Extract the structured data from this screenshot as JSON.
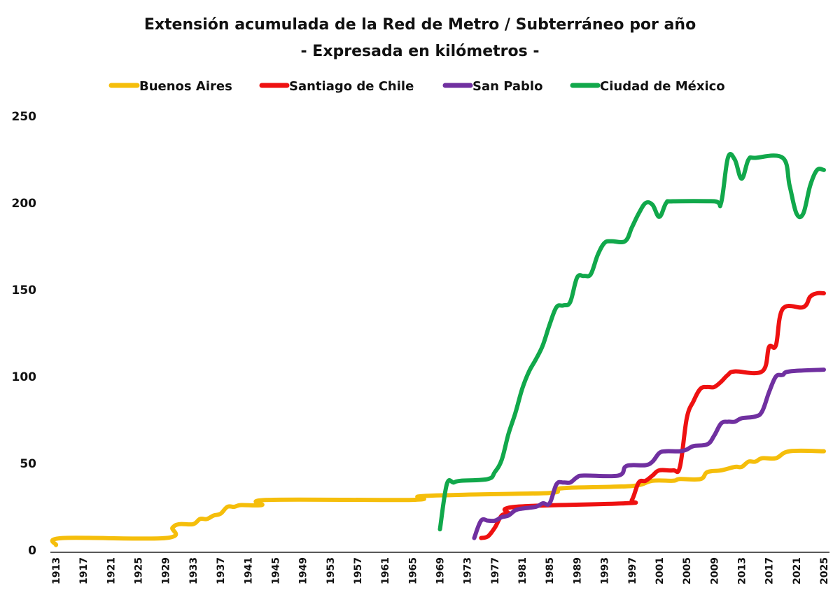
{
  "chart_data": {
    "type": "line",
    "title": "Extensión acumulada de la Red de Metro / Subterráneo por año",
    "subtitle": "- Expresada en kilómetros -",
    "xlabel": "",
    "ylabel": "",
    "xlim": [
      1913,
      2025
    ],
    "ylim": [
      0,
      250
    ],
    "grid": false,
    "legend_position": "top",
    "yticks": [
      0,
      50,
      100,
      150,
      200,
      250
    ],
    "xticks": [
      1913,
      1917,
      1921,
      1925,
      1929,
      1933,
      1937,
      1941,
      1945,
      1949,
      1953,
      1957,
      1961,
      1965,
      1969,
      1973,
      1977,
      1981,
      1985,
      1989,
      1993,
      1997,
      2001,
      2005,
      2009,
      2013,
      2017,
      2021,
      2025
    ],
    "series": [
      {
        "name": "Buenos Aires",
        "color": "#F5BE0B",
        "points": [
          [
            1913,
            3
          ],
          [
            1914,
            7
          ],
          [
            1929,
            7
          ],
          [
            1930,
            13
          ],
          [
            1931,
            15
          ],
          [
            1933,
            15
          ],
          [
            1934,
            18
          ],
          [
            1935,
            18
          ],
          [
            1936,
            20
          ],
          [
            1937,
            21
          ],
          [
            1938,
            25
          ],
          [
            1939,
            25
          ],
          [
            1940,
            26
          ],
          [
            1943,
            26
          ],
          [
            1944,
            29
          ],
          [
            1965,
            29
          ],
          [
            1966,
            31
          ],
          [
            1973,
            32
          ],
          [
            1985,
            33
          ],
          [
            1986,
            35
          ],
          [
            1988,
            36
          ],
          [
            1997,
            37
          ],
          [
            2000,
            40
          ],
          [
            2003,
            40
          ],
          [
            2004,
            41
          ],
          [
            2007,
            41
          ],
          [
            2008,
            45
          ],
          [
            2010,
            46
          ],
          [
            2012,
            48
          ],
          [
            2013,
            48
          ],
          [
            2014,
            51
          ],
          [
            2015,
            51
          ],
          [
            2016,
            53
          ],
          [
            2018,
            53
          ],
          [
            2020,
            57
          ],
          [
            2025,
            57
          ]
        ]
      },
      {
        "name": "Santiago de Chile",
        "color": "#EE1111",
        "points": [
          [
            1975,
            7
          ],
          [
            1976,
            8
          ],
          [
            1977,
            13
          ],
          [
            1978,
            20
          ],
          [
            1979,
            21
          ],
          [
            1980,
            25
          ],
          [
            1996,
            27
          ],
          [
            1997,
            29
          ],
          [
            1998,
            39
          ],
          [
            1999,
            40
          ],
          [
            2000,
            43
          ],
          [
            2001,
            46
          ],
          [
            2003,
            46
          ],
          [
            2004,
            48
          ],
          [
            2005,
            76
          ],
          [
            2006,
            86
          ],
          [
            2007,
            93
          ],
          [
            2008,
            94
          ],
          [
            2009,
            94
          ],
          [
            2010,
            97
          ],
          [
            2011,
            101
          ],
          [
            2012,
            103
          ],
          [
            2016,
            103
          ],
          [
            2017,
            117
          ],
          [
            2018,
            118
          ],
          [
            2019,
            139
          ],
          [
            2022,
            140
          ],
          [
            2023,
            146
          ],
          [
            2024,
            148
          ],
          [
            2025,
            148
          ]
        ]
      },
      {
        "name": "San Pablo",
        "color": "#7030A0",
        "points": [
          [
            1974,
            7
          ],
          [
            1975,
            17
          ],
          [
            1976,
            17
          ],
          [
            1977,
            17
          ],
          [
            1978,
            19
          ],
          [
            1979,
            20
          ],
          [
            1980,
            23
          ],
          [
            1981,
            24
          ],
          [
            1983,
            25
          ],
          [
            1984,
            27
          ],
          [
            1985,
            27
          ],
          [
            1986,
            38
          ],
          [
            1987,
            39
          ],
          [
            1988,
            39
          ],
          [
            1989,
            42
          ],
          [
            1990,
            43
          ],
          [
            1995,
            43
          ],
          [
            1996,
            48
          ],
          [
            1997,
            49
          ],
          [
            1999,
            49
          ],
          [
            2000,
            51
          ],
          [
            2001,
            56
          ],
          [
            2002,
            57
          ],
          [
            2004,
            57
          ],
          [
            2005,
            58
          ],
          [
            2006,
            60
          ],
          [
            2008,
            61
          ],
          [
            2009,
            66
          ],
          [
            2010,
            73
          ],
          [
            2011,
            74
          ],
          [
            2012,
            74
          ],
          [
            2013,
            76
          ],
          [
            2015,
            77
          ],
          [
            2016,
            80
          ],
          [
            2017,
            91
          ],
          [
            2018,
            100
          ],
          [
            2019,
            101
          ],
          [
            2020,
            103
          ],
          [
            2025,
            104
          ]
        ]
      },
      {
        "name": "Ciudad de México",
        "color": "#11A84B",
        "points": [
          [
            1969,
            12
          ],
          [
            1970,
            38
          ],
          [
            1971,
            39
          ],
          [
            1972,
            40
          ],
          [
            1976,
            41
          ],
          [
            1977,
            45
          ],
          [
            1978,
            52
          ],
          [
            1979,
            67
          ],
          [
            1980,
            79
          ],
          [
            1981,
            93
          ],
          [
            1982,
            103
          ],
          [
            1983,
            110
          ],
          [
            1984,
            118
          ],
          [
            1985,
            130
          ],
          [
            1986,
            140
          ],
          [
            1987,
            141
          ],
          [
            1988,
            143
          ],
          [
            1989,
            157
          ],
          [
            1990,
            158
          ],
          [
            1991,
            159
          ],
          [
            1992,
            170
          ],
          [
            1993,
            177
          ],
          [
            1994,
            178
          ],
          [
            1996,
            178
          ],
          [
            1997,
            186
          ],
          [
            1998,
            194
          ],
          [
            1999,
            200
          ],
          [
            2000,
            199
          ],
          [
            2001,
            192
          ],
          [
            2002,
            200
          ],
          [
            2003,
            201
          ],
          [
            2009,
            201
          ],
          [
            2010,
            200
          ],
          [
            2011,
            226
          ],
          [
            2012,
            225
          ],
          [
            2013,
            214
          ],
          [
            2014,
            225
          ],
          [
            2015,
            226
          ],
          [
            2019,
            226
          ],
          [
            2020,
            210
          ],
          [
            2021,
            194
          ],
          [
            2022,
            194
          ],
          [
            2023,
            210
          ],
          [
            2024,
            219
          ],
          [
            2025,
            219
          ]
        ]
      }
    ]
  }
}
